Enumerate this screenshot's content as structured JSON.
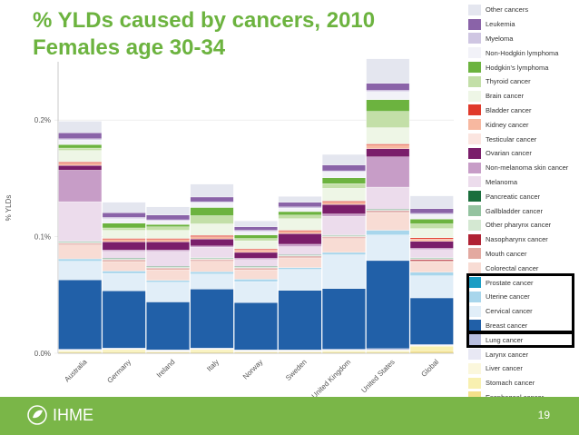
{
  "header": {
    "title_line1": "% YLDs caused by cancers, 2010",
    "title_line2": "Females age 30-34"
  },
  "footer": {
    "logo_text": "IHME",
    "page_number": "19"
  },
  "colors": {
    "title": "#6cb33f",
    "footer": "#7ab648"
  },
  "chart_data": {
    "type": "bar",
    "stacked": true,
    "ylabel": "% YLDs",
    "ylim": [
      0,
      0.25
    ],
    "yticks": [
      {
        "value": 0,
        "label": "0.0%"
      },
      {
        "value": 0.1,
        "label": "0.1%"
      },
      {
        "value": 0.2,
        "label": "0.2%"
      }
    ],
    "categories": [
      "Australia",
      "Germany",
      "Ireland",
      "Italy",
      "Norway",
      "Sweden",
      "United Kingdom",
      "United States",
      "Global"
    ],
    "series": [
      {
        "name": "Esophageal cancer",
        "color": "#f3e08a",
        "values": [
          0.001,
          0.001,
          0.001,
          0.001,
          0.001,
          0.001,
          0.001,
          0.001,
          0.002
        ]
      },
      {
        "name": "Stomach cancer",
        "color": "#f8f0b0",
        "values": [
          0.001,
          0.002,
          0.0005,
          0.002,
          0.0005,
          0.0005,
          0.001,
          0.001,
          0.004
        ]
      },
      {
        "name": "Liver cancer",
        "color": "#fbf7dc",
        "values": [
          0.0005,
          0.0005,
          0.0005,
          0.0005,
          0.0005,
          0.0005,
          0.0005,
          0.0005,
          0.0005
        ]
      },
      {
        "name": "Larynx cancer",
        "color": "#e8e8f4",
        "values": [
          0.0005,
          0.0005,
          0.0005,
          0.0005,
          0.0005,
          0.0005,
          0.0005,
          0.0005,
          0.0005
        ]
      },
      {
        "name": "Lung cancer",
        "color": "#b9bfdf",
        "values": [
          0.0005,
          0.0005,
          0.0005,
          0.0005,
          0.0005,
          0.0005,
          0.0005,
          0.001,
          0.0005
        ]
      },
      {
        "name": "Breast cancer",
        "color": "#2160a8",
        "values": [
          0.0595,
          0.049,
          0.041,
          0.0505,
          0.0405,
          0.051,
          0.052,
          0.0755,
          0.04
        ]
      },
      {
        "name": "Cervical cancer",
        "color": "#e1eef8",
        "values": [
          0.016,
          0.015,
          0.017,
          0.013,
          0.018,
          0.018,
          0.029,
          0.022,
          0.019
        ]
      },
      {
        "name": "Uterine cancer",
        "color": "#a8d6ec",
        "values": [
          0.002,
          0.002,
          0.0015,
          0.002,
          0.002,
          0.0015,
          0.002,
          0.004,
          0.003
        ]
      },
      {
        "name": "Prostate cancer",
        "color": "#1b9dc4",
        "values": [
          0,
          0,
          0,
          0,
          0,
          0,
          0,
          0,
          0
        ]
      },
      {
        "name": "Colorectal cancer",
        "color": "#f8dcd4",
        "values": [
          0.012,
          0.008,
          0.009,
          0.009,
          0.008,
          0.008,
          0.012,
          0.015,
          0.009
        ]
      },
      {
        "name": "Mouth cancer",
        "color": "#e3a9a0",
        "values": [
          0.001,
          0.001,
          0.001,
          0.001,
          0.001,
          0.001,
          0.001,
          0.001,
          0.001
        ]
      },
      {
        "name": "Nasopharynx cancer",
        "color": "#b02234",
        "values": [
          0.0005,
          0.0005,
          0.0005,
          0.0005,
          0.0005,
          0.0005,
          0.0005,
          0.0005,
          0.001
        ]
      },
      {
        "name": "Other pharynx cancer",
        "color": "#d4e8d2",
        "values": [
          0.0005,
          0.0005,
          0.0005,
          0.0005,
          0.0005,
          0.0005,
          0.0005,
          0.0005,
          0.0005
        ]
      },
      {
        "name": "Gallbladder cancer",
        "color": "#94c3a0",
        "values": [
          0.0005,
          0.0005,
          0.0005,
          0.0005,
          0.0005,
          0.0005,
          0.0005,
          0.0005,
          0.0005
        ]
      },
      {
        "name": "Pancreatic cancer",
        "color": "#1a6e3c",
        "values": [
          0.0005,
          0.0005,
          0.0005,
          0.0005,
          0.0005,
          0.0005,
          0.0005,
          0.0005,
          0.0005
        ]
      },
      {
        "name": "Melanoma",
        "color": "#ecdcec",
        "values": [
          0.034,
          0.006,
          0.013,
          0.009,
          0.006,
          0.007,
          0.016,
          0.019,
          0.007
        ]
      },
      {
        "name": "Non-melanoma skin cancer",
        "color": "#c79dc7",
        "values": [
          0.027,
          0.001,
          0.001,
          0.001,
          0.001,
          0.002,
          0.002,
          0.026,
          0.001
        ]
      },
      {
        "name": "Ovarian cancer",
        "color": "#7a1e6a",
        "values": [
          0.004,
          0.007,
          0.007,
          0.006,
          0.005,
          0.009,
          0.008,
          0.007,
          0.006
        ]
      },
      {
        "name": "Testicular cancer",
        "color": "#fbe5e0",
        "values": [
          0,
          0,
          0,
          0,
          0,
          0,
          0,
          0,
          0
        ]
      },
      {
        "name": "Kidney cancer",
        "color": "#f7b8a0",
        "values": [
          0.002,
          0.002,
          0.002,
          0.002,
          0.002,
          0.002,
          0.002,
          0.003,
          0.002
        ]
      },
      {
        "name": "Bladder cancer",
        "color": "#e03a2b",
        "values": [
          0.001,
          0.001,
          0.001,
          0.001,
          0.001,
          0.001,
          0.001,
          0.001,
          0.001
        ]
      },
      {
        "name": "Brain cancer",
        "color": "#eef6e6",
        "values": [
          0.01,
          0.007,
          0.007,
          0.01,
          0.007,
          0.01,
          0.011,
          0.014,
          0.008
        ]
      },
      {
        "name": "Thyroid cancer",
        "color": "#c3dfa8",
        "values": [
          0.002,
          0.002,
          0.003,
          0.007,
          0.002,
          0.003,
          0.004,
          0.014,
          0.004
        ]
      },
      {
        "name": "Hodgkin's lymphoma",
        "color": "#6cb33f",
        "values": [
          0.003,
          0.004,
          0.002,
          0.007,
          0.003,
          0.003,
          0.005,
          0.01,
          0.004
        ]
      },
      {
        "name": "Non-Hodgkin lymphoma",
        "color": "#f2f2f8",
        "values": [
          0.004,
          0.004,
          0.003,
          0.004,
          0.003,
          0.003,
          0.005,
          0.007,
          0.004
        ]
      },
      {
        "name": "Myeloma",
        "color": "#cfc6e2",
        "values": [
          0.001,
          0.001,
          0.001,
          0.001,
          0.001,
          0.001,
          0.001,
          0.001,
          0.001
        ]
      },
      {
        "name": "Leukemia",
        "color": "#8a63a8",
        "values": [
          0.005,
          0.004,
          0.004,
          0.004,
          0.003,
          0.004,
          0.005,
          0.006,
          0.004
        ]
      },
      {
        "name": "Other cancers",
        "color": "#e4e6ef",
        "values": [
          0.01,
          0.009,
          0.007,
          0.011,
          0.005,
          0.005,
          0.009,
          0.021,
          0.011
        ]
      }
    ],
    "legend_order": [
      "Other cancers",
      "Leukemia",
      "Myeloma",
      "Non-Hodgkin lymphoma",
      "Hodgkin's lymphoma",
      "Thyroid cancer",
      "Brain cancer",
      "Bladder cancer",
      "Kidney cancer",
      "Testicular cancer",
      "Ovarian cancer",
      "Non-melanoma skin cancer",
      "Melanoma",
      "Pancreatic cancer",
      "Gallbladder cancer",
      "Other pharynx cancer",
      "Nasopharynx cancer",
      "Mouth cancer",
      "Colorectal cancer",
      "Prostate cancer",
      "Uterine cancer",
      "Cervical cancer",
      "Breast cancer",
      "Lung cancer",
      "Larynx cancer",
      "Liver cancer",
      "Stomach cancer",
      "Esophageal cancer"
    ],
    "highlighted_legend": [
      [
        "Prostate cancer",
        "Breast cancer"
      ],
      [
        "Lung cancer"
      ]
    ]
  }
}
